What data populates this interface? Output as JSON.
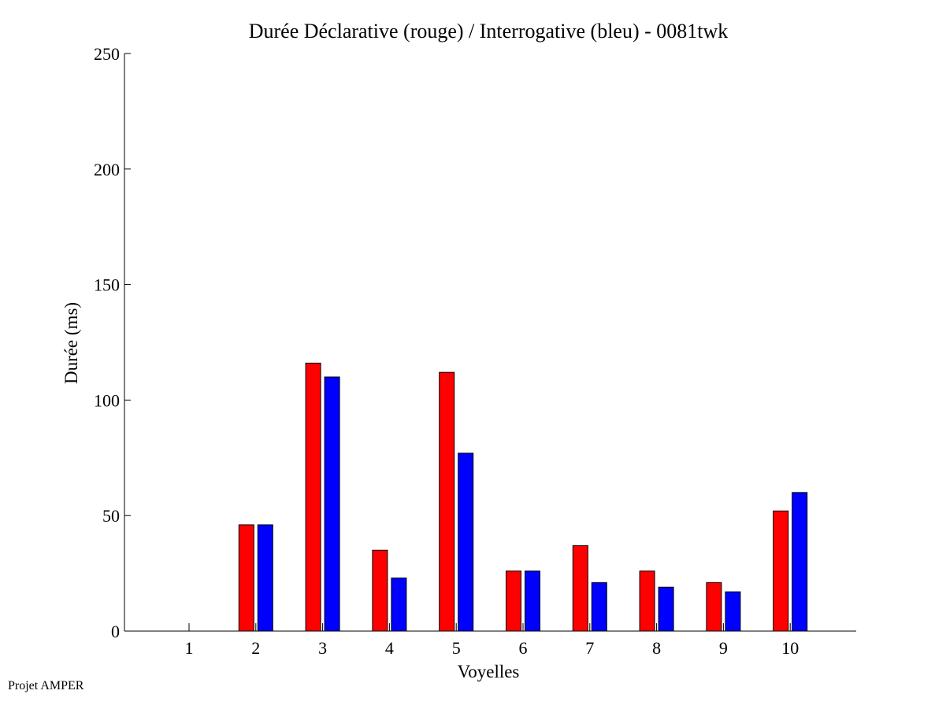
{
  "chart_data": {
    "type": "bar",
    "title": "Durée Déclarative (rouge) / Interrogative (bleu) - 0081twk",
    "xlabel": "Voyelles",
    "ylabel": "Durée (ms)",
    "categories": [
      "1",
      "2",
      "3",
      "4",
      "5",
      "6",
      "7",
      "8",
      "9",
      "10"
    ],
    "ylim": [
      0,
      250
    ],
    "yticks": [
      0,
      50,
      100,
      150,
      200,
      250
    ],
    "grid": false,
    "series": [
      {
        "color": "#ff0000",
        "values": [
          0,
          46,
          116,
          35,
          112,
          26,
          37,
          26,
          21,
          52
        ]
      },
      {
        "color": "#0000ff",
        "values": [
          0,
          46,
          110,
          23,
          77,
          26,
          21,
          19,
          17,
          60
        ]
      }
    ]
  },
  "footer": "Projet AMPER"
}
